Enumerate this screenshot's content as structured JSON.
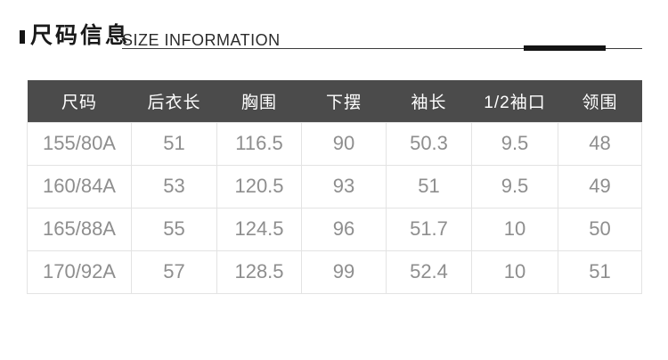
{
  "header": {
    "title_cn": "尺码信息",
    "title_en": "SIZE INFORMATION"
  },
  "table": {
    "columns": [
      "尺码",
      "后衣长",
      "胸围",
      "下摆",
      "袖长",
      "1/2袖口",
      "领围"
    ],
    "rows": [
      [
        "155/80A",
        "51",
        "116.5",
        "90",
        "50.3",
        "9.5",
        "48"
      ],
      [
        "160/84A",
        "53",
        "120.5",
        "93",
        "51",
        "9.5",
        "49"
      ],
      [
        "165/88A",
        "55",
        "124.5",
        "96",
        "51.7",
        "10",
        "50"
      ],
      [
        "170/92A",
        "57",
        "128.5",
        "99",
        "52.4",
        "10",
        "51"
      ]
    ]
  },
  "colors": {
    "header_bg": "#4b4b4b",
    "header_text": "#ffffff",
    "cell_text": "#8e8e8e",
    "border": "#e3e3e3",
    "accent": "#141414",
    "title_text": "#1a1a1a"
  }
}
